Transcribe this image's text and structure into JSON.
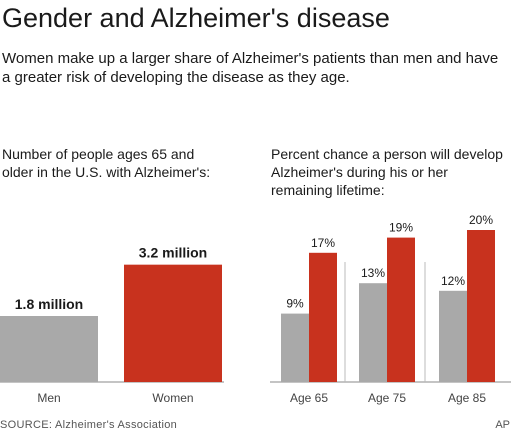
{
  "title": "Gender and Alzheimer's disease",
  "subtitle": "Women make up a larger share of Alzheimer's patients than men and have a greater risk of developing the disease as they age.",
  "source": "SOURCE: Alzheimer's Association",
  "credit": "AP",
  "colors": {
    "men": "#a9a9a9",
    "women": "#c8321e",
    "axis": "#888888"
  },
  "chart_data": [
    {
      "type": "bar",
      "title": "Number of people ages 65 and older in the U.S. with Alzheimer's:",
      "unit": "million",
      "categories": [
        "Men",
        "Women"
      ],
      "values": [
        1.8,
        3.2
      ],
      "value_labels": [
        "1.8 million",
        "3.2 million"
      ],
      "ylim": [
        0,
        4.5
      ]
    },
    {
      "type": "bar",
      "title": "Percent chance a person will develop Alzheimer's during his or her remaining lifetime:",
      "categories": [
        "Age 65",
        "Age 75",
        "Age 85"
      ],
      "series": [
        {
          "name": "Men",
          "values": [
            9,
            13,
            12
          ]
        },
        {
          "name": "Women",
          "values": [
            17,
            19,
            20
          ]
        }
      ],
      "ylim": [
        0,
        25
      ]
    }
  ]
}
